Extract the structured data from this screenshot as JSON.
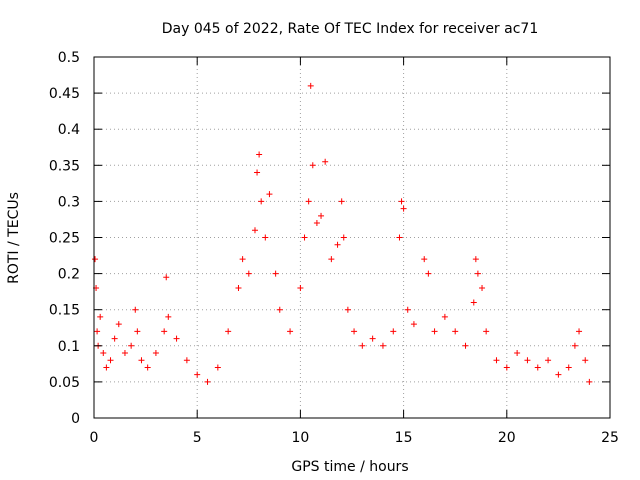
{
  "chart_data": {
    "type": "scatter",
    "title": "Day 045 of 2022, Rate Of TEC Index for receiver ac71",
    "xlabel": "GPS time / hours",
    "ylabel": "ROTI / TECUs",
    "xlim": [
      0,
      25
    ],
    "ylim": [
      0,
      0.5
    ],
    "x_ticks": [
      0,
      5,
      10,
      15,
      20,
      25
    ],
    "x_tick_labels": [
      "0",
      "5",
      "10",
      "15",
      "20",
      "25"
    ],
    "y_ticks": [
      0,
      0.05,
      0.1,
      0.15,
      0.2,
      0.25,
      0.3,
      0.35,
      0.4,
      0.45,
      0.5
    ],
    "y_tick_labels": [
      "0",
      "0.05",
      "0.1",
      "0.15",
      "0.2",
      "0.25",
      "0.3",
      "0.35",
      "0.4",
      "0.45",
      "0.5"
    ],
    "grid": true,
    "marker": "+",
    "colors": {
      "series": "#ff0000",
      "grid": "#a0a0a0",
      "axis": "#000000"
    },
    "series": [
      {
        "x": [
          0.05,
          0.1,
          0.15,
          0.2,
          0.3,
          0.45,
          0.6,
          0.8,
          1.0,
          1.2,
          1.5,
          1.8,
          2.0,
          2.1,
          2.3,
          2.6,
          3.0,
          3.4,
          3.5,
          3.6,
          4.0,
          4.5,
          5.0,
          5.5,
          6.0,
          6.5,
          7.0,
          7.2,
          7.5,
          7.8,
          7.9,
          8.0,
          8.1,
          8.3,
          8.5,
          8.8,
          9.0,
          9.5,
          10.0,
          10.2,
          10.4,
          10.5,
          10.6,
          10.8,
          11.0,
          11.2,
          11.5,
          11.8,
          12.0,
          12.1,
          12.3,
          12.6,
          13.0,
          13.5,
          14.0,
          14.5,
          14.8,
          14.9,
          15.0,
          15.2,
          15.5,
          16.0,
          16.2,
          16.5,
          17.0,
          17.5,
          18.0,
          18.4,
          18.5,
          18.6,
          18.8,
          19.0,
          19.5,
          20.0,
          20.5,
          21.0,
          21.5,
          22.0,
          22.5,
          23.0,
          23.3,
          23.5,
          23.8,
          24.0
        ],
        "y": [
          0.22,
          0.18,
          0.12,
          0.1,
          0.14,
          0.09,
          0.07,
          0.08,
          0.11,
          0.13,
          0.09,
          0.1,
          0.15,
          0.12,
          0.08,
          0.07,
          0.09,
          0.12,
          0.195,
          0.14,
          0.11,
          0.08,
          0.06,
          0.05,
          0.07,
          0.12,
          0.18,
          0.22,
          0.2,
          0.26,
          0.34,
          0.365,
          0.3,
          0.25,
          0.31,
          0.2,
          0.15,
          0.12,
          0.18,
          0.25,
          0.3,
          0.46,
          0.35,
          0.27,
          0.28,
          0.355,
          0.22,
          0.24,
          0.3,
          0.25,
          0.15,
          0.12,
          0.1,
          0.11,
          0.1,
          0.12,
          0.25,
          0.3,
          0.29,
          0.15,
          0.13,
          0.22,
          0.2,
          0.12,
          0.14,
          0.12,
          0.1,
          0.16,
          0.22,
          0.2,
          0.18,
          0.12,
          0.08,
          0.07,
          0.09,
          0.08,
          0.07,
          0.08,
          0.06,
          0.07,
          0.1,
          0.12,
          0.08,
          0.05
        ]
      }
    ]
  }
}
